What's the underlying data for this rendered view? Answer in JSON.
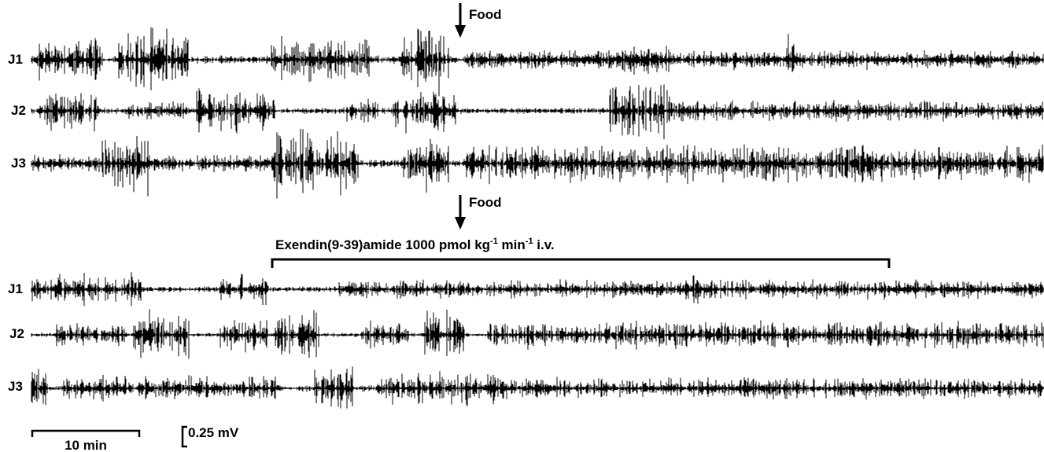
{
  "panels": [
    {
      "food_label": "Food",
      "traces": [
        {
          "label": "J1"
        },
        {
          "label": "J2"
        },
        {
          "label": "J3"
        }
      ]
    },
    {
      "food_label": "Food",
      "treatment": {
        "parts": [
          "Exendin(9-39)amide  1000 pmol kg",
          "-1",
          " min",
          "-1",
          "  i.v."
        ]
      },
      "traces": [
        {
          "label": "J1"
        },
        {
          "label": "J2"
        },
        {
          "label": "J3"
        }
      ]
    }
  ],
  "scale_bars": {
    "time": "10 min",
    "voltage": "0.25 mV"
  }
}
